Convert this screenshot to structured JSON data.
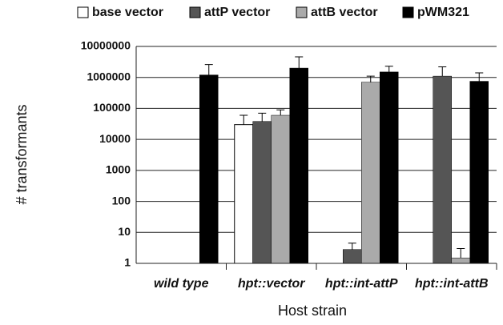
{
  "chart_data": {
    "type": "bar",
    "categories": [
      "wild type",
      "hpt::vector",
      "hpt::int-attP",
      "hpt::int-attB"
    ],
    "series": [
      {
        "name": "base vector",
        "color": "#ffffff",
        "values": [
          null,
          30000,
          null,
          null
        ],
        "errors": [
          null,
          30000,
          null,
          null
        ]
      },
      {
        "name": "attP vector",
        "color": "#555555",
        "values": [
          null,
          38000,
          2.8,
          1100000
        ],
        "errors": [
          null,
          32000,
          1.7,
          1100000
        ]
      },
      {
        "name": "attB vector",
        "color": "#aaaaaa",
        "values": [
          null,
          60000,
          700000,
          1.5
        ],
        "errors": [
          null,
          30000,
          400000,
          1.5
        ]
      },
      {
        "name": "pWM321",
        "color": "#000000",
        "values": [
          1200000,
          2000000,
          1500000,
          750000
        ],
        "errors": [
          1400000,
          2600000,
          800000,
          650000
        ]
      }
    ],
    "xlabel": "Host strain",
    "ylabel": "# transformants",
    "ylim": [
      1,
      10000000
    ],
    "yticks": [
      1,
      10,
      100,
      1000,
      10000,
      100000,
      1000000,
      10000000
    ],
    "yscale": "log",
    "grid": true
  }
}
